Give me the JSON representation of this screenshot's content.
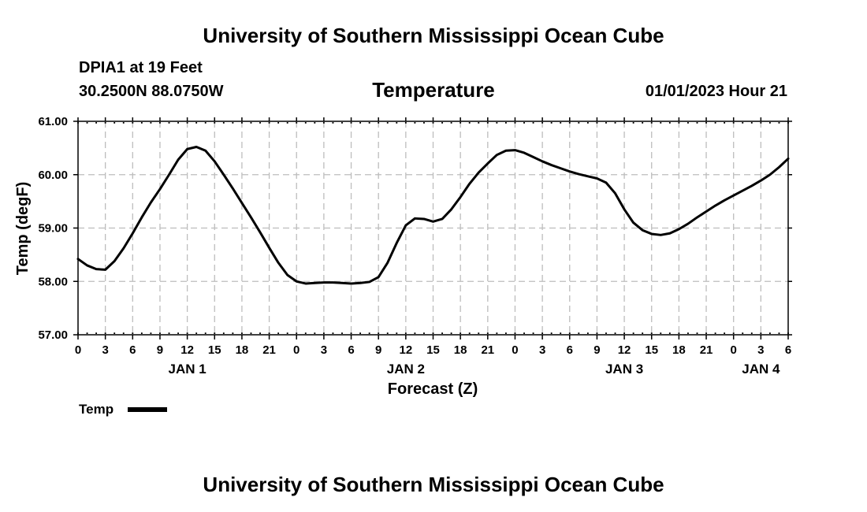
{
  "header": {
    "title": "University of Southern Mississippi Ocean Cube",
    "station": "DPIA1 at 19 Feet",
    "coords": "30.2500N  88.0750W",
    "chart_title": "Temperature",
    "datetime": "01/01/2023 Hour 21"
  },
  "footer": {
    "title": "University of Southern Mississippi Ocean Cube"
  },
  "chart_data": {
    "type": "line",
    "title": "Temperature",
    "xlabel": "Forecast (Z)",
    "ylabel": "Temp (degF)",
    "ylim": [
      57.0,
      61.0
    ],
    "xlim": [
      0,
      78
    ],
    "y_ticks": [
      "57.00",
      "58.00",
      "59.00",
      "60.00",
      "61.00"
    ],
    "x_ticks": [
      "0",
      "3",
      "6",
      "9",
      "12",
      "15",
      "18",
      "21",
      "0",
      "3",
      "6",
      "9",
      "12",
      "15",
      "18",
      "21",
      "0",
      "3",
      "6",
      "9",
      "12",
      "15",
      "18",
      "21",
      "0",
      "3",
      "6"
    ],
    "day_labels": [
      {
        "label": "JAN 1",
        "hour": 12
      },
      {
        "label": "JAN 2",
        "hour": 36
      },
      {
        "label": "JAN 3",
        "hour": 60
      },
      {
        "label": "JAN 4",
        "hour": 75
      }
    ],
    "grid": true,
    "series": [
      {
        "name": "Temp",
        "color": "#000000",
        "x": [
          0,
          1,
          2,
          3,
          4,
          5,
          6,
          7,
          8,
          9,
          10,
          11,
          12,
          13,
          14,
          15,
          16,
          17,
          18,
          19,
          20,
          21,
          22,
          23,
          24,
          25,
          26,
          27,
          28,
          29,
          30,
          31,
          32,
          33,
          34,
          35,
          36,
          37,
          38,
          39,
          40,
          41,
          42,
          43,
          44,
          45,
          46,
          47,
          48,
          49,
          50,
          51,
          52,
          53,
          54,
          55,
          56,
          57,
          58,
          59,
          60,
          61,
          62,
          63,
          64,
          65,
          66,
          67,
          68,
          69,
          70,
          71,
          72,
          73,
          74,
          75,
          76,
          77,
          78
        ],
        "values": [
          58.42,
          58.3,
          58.23,
          58.22,
          58.38,
          58.62,
          58.9,
          59.2,
          59.48,
          59.73,
          60.0,
          60.28,
          60.48,
          60.52,
          60.45,
          60.25,
          60.0,
          59.74,
          59.47,
          59.2,
          58.92,
          58.63,
          58.35,
          58.12,
          58.0,
          57.96,
          57.97,
          57.98,
          57.98,
          57.97,
          57.96,
          57.97,
          57.99,
          58.08,
          58.35,
          58.72,
          59.05,
          59.18,
          59.17,
          59.12,
          59.17,
          59.35,
          59.58,
          59.83,
          60.04,
          60.21,
          60.37,
          60.45,
          60.46,
          60.41,
          60.33,
          60.25,
          60.18,
          60.12,
          60.06,
          60.01,
          59.97,
          59.93,
          59.85,
          59.65,
          59.35,
          59.1,
          58.96,
          58.89,
          58.87,
          58.9,
          58.98,
          59.08,
          59.2,
          59.31,
          59.42,
          59.52,
          59.61,
          59.7,
          59.79,
          59.89,
          60.0,
          60.14,
          60.3
        ]
      }
    ],
    "legend": {
      "label": "Temp",
      "placement": "bottom-left"
    }
  }
}
